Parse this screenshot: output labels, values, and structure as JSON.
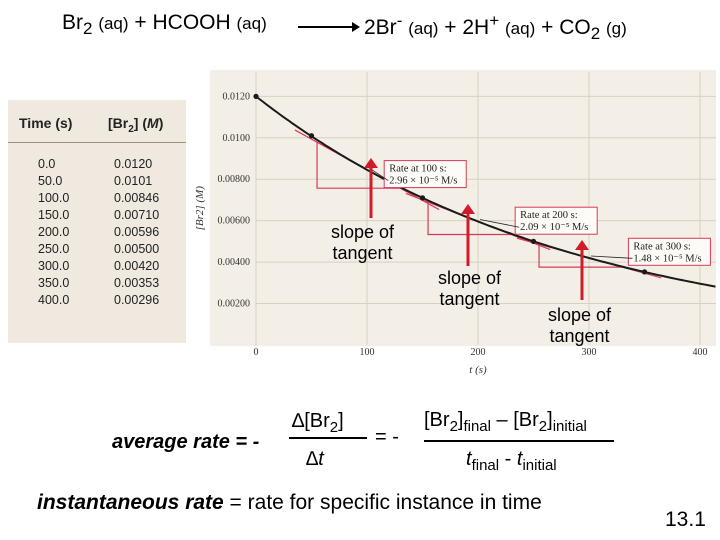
{
  "equation": {
    "left_species": "Br",
    "left_sub": "2",
    "left_phase": "(aq)",
    "plus": "+",
    "acid": "HCOOH",
    "acid_phase": "(aq)",
    "p1_coef": "2Br",
    "p1_charge": "-",
    "p1_phase": "(aq)",
    "p2_coef": "+ 2H",
    "p2_charge": "+",
    "p2_phase": "(aq)",
    "p3": "+ CO",
    "p3_sub": "2",
    "p3_phase": "(g)"
  },
  "table": {
    "header_time": "Time (s)",
    "header_conc_a": "[Br",
    "header_conc_sub": "2",
    "header_conc_b": "] (",
    "header_conc_unit": "M",
    "header_conc_c": ")",
    "rows": [
      {
        "time": "0.0",
        "conc": "0.0120"
      },
      {
        "time": "50.0",
        "conc": "0.0101"
      },
      {
        "time": "100.0",
        "conc": "0.00846"
      },
      {
        "time": "150.0",
        "conc": "0.00710"
      },
      {
        "time": "200.0",
        "conc": "0.00596"
      },
      {
        "time": "250.0",
        "conc": "0.00500"
      },
      {
        "time": "300.0",
        "conc": "0.00420"
      },
      {
        "time": "350.0",
        "conc": "0.00353"
      },
      {
        "time": "400.0",
        "conc": "0.00296"
      }
    ]
  },
  "chart_data": {
    "type": "line",
    "x": [
      0,
      50,
      100,
      150,
      200,
      250,
      300,
      350,
      400
    ],
    "y": [
      0.012,
      0.0101,
      0.00846,
      0.0071,
      0.00596,
      0.005,
      0.0042,
      0.00353,
      0.00296
    ],
    "xlabel": "t (s)",
    "ylabel": "[Br2] (M)",
    "xlim": [
      0,
      400
    ],
    "ylim": [
      0,
      0.0125
    ],
    "x_ticks": [
      "0",
      "100",
      "200",
      "300",
      "400"
    ],
    "y_ticks": [
      "0.0120",
      "0.0100",
      "0.00800",
      "0.00600",
      "0.00400",
      "0.00200"
    ],
    "y_tick_values": [
      0.012,
      0.01,
      0.008,
      0.006,
      0.004,
      0.002
    ],
    "tangents": [
      {
        "t": 100,
        "rate_line1": "Rate at 100 s:",
        "rate_line2": "2.96 × 10⁻⁵ M/s"
      },
      {
        "t": 200,
        "rate_line1": "Rate at 200 s:",
        "rate_line2": "2.09 × 10⁻⁵ M/s"
      },
      {
        "t": 300,
        "rate_line1": "Rate at 300 s:",
        "rate_line2": "1.48 × 10⁻⁵ M/s"
      }
    ]
  },
  "slope_labels": [
    {
      "line1": "slope of",
      "line2": "tangent"
    },
    {
      "line1": "slope of",
      "line2": "tangent"
    },
    {
      "line1": "slope of",
      "line2": "tangent"
    }
  ],
  "formula": {
    "label": "average rate = -",
    "num_a": "∆[Br",
    "num_sub": "2",
    "num_b": "]",
    "den": "∆t",
    "eq": "= -",
    "num2_a": "[Br",
    "num2_sub1": "2",
    "num2_b": "]",
    "num2_final": "final",
    "num2_minus": " – [Br",
    "num2_sub2": "2",
    "num2_c": "]",
    "num2_initial": "initial",
    "den2_t1": "t",
    "den2_final": "final",
    "den2_minus": " - ",
    "den2_t2": "t",
    "den2_initial": "initial"
  },
  "instantaneous": {
    "term": "instantaneous rate",
    "definition": " = rate for specific instance in time"
  },
  "slide_number": "13.1",
  "colors": {
    "curve": "#1a1a1a",
    "tangent": "#d63a5b",
    "pointer": "#d11a2a",
    "callout_border": "#d63a5b",
    "table_bg": "#efe9df"
  }
}
